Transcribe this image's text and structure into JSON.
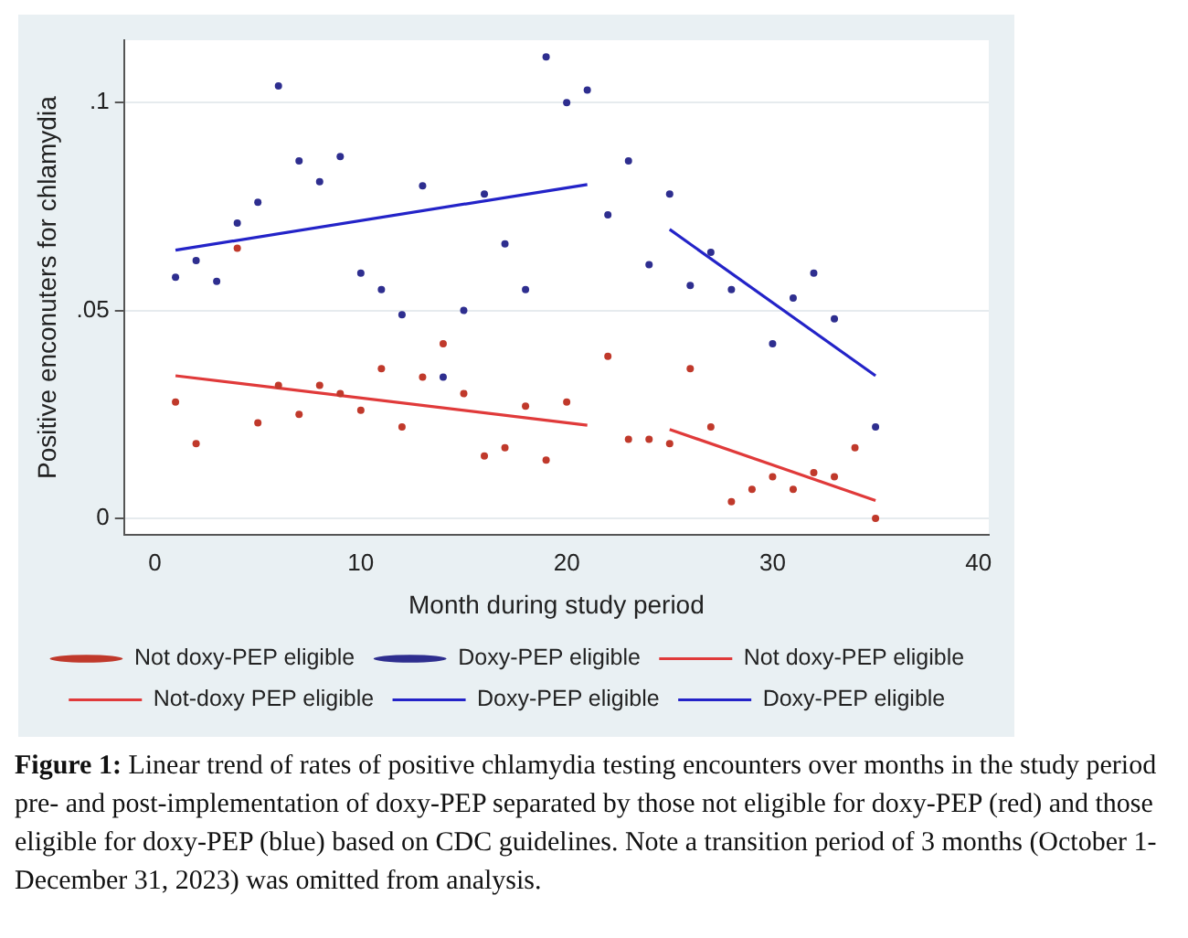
{
  "chart_data": {
    "type": "scatter",
    "xlabel": "Month during study period",
    "ylabel": "Positive enconuters for chlamydia",
    "xlim": [
      -1.5,
      40.5
    ],
    "xticks": [
      0,
      10,
      20,
      30,
      40
    ],
    "ylim": [
      -0.004,
      0.115
    ],
    "yticks": [
      0,
      {
        "value": 0.05,
        "label": ".05"
      },
      {
        "value": 0.1,
        "label": ".1"
      }
    ],
    "grid": "y",
    "legend": "bottom",
    "series": [
      {
        "name": "Not doxy-PEP eligible",
        "type": "scatter",
        "marker": "circle",
        "color": "#c0392b",
        "x": [
          1,
          2,
          4,
          5,
          6,
          7,
          8,
          9,
          10,
          11,
          12,
          13,
          14,
          15,
          16,
          17,
          18,
          19,
          20,
          22,
          23,
          24,
          25,
          26,
          27,
          28,
          29,
          30,
          31,
          32,
          33,
          34,
          35
        ],
        "values": [
          0.028,
          0.018,
          0.065,
          0.023,
          0.032,
          0.025,
          0.032,
          0.03,
          0.026,
          0.036,
          0.022,
          0.034,
          0.042,
          0.03,
          0.015,
          0.017,
          0.027,
          0.014,
          0.028,
          0.039,
          0.019,
          0.019,
          0.018,
          0.036,
          0.022,
          0.004,
          0.007,
          0.01,
          0.007,
          0.011,
          0.01,
          0.017,
          0
        ]
      },
      {
        "name": "Doxy-PEP eligible",
        "type": "scatter",
        "marker": "circle",
        "color": "#2e2e8f",
        "x": [
          1,
          2,
          3,
          4,
          5,
          6,
          7,
          8,
          9,
          10,
          11,
          12,
          13,
          14,
          15,
          16,
          17,
          18,
          19,
          20,
          21,
          22,
          23,
          24,
          25,
          26,
          27,
          28,
          30,
          31,
          32,
          33,
          35
        ],
        "values": [
          0.058,
          0.062,
          0.057,
          0.071,
          0.076,
          0.104,
          0.086,
          0.081,
          0.087,
          0.059,
          0.055,
          0.049,
          0.08,
          0.034,
          0.05,
          0.078,
          0.066,
          0.055,
          0.111,
          0.1,
          0.103,
          0.073,
          0.086,
          0.061,
          0.078,
          0.056,
          0.064,
          0.055,
          0.042,
          0.053,
          0.059,
          0.048,
          0.022
        ]
      },
      {
        "name": "Not doxy-PEP eligible",
        "type": "line",
        "color": "#e03a3a",
        "x": [
          1,
          21
        ],
        "values": [
          0.0343,
          0.0224
        ]
      },
      {
        "name": "Not-doxy PEP eligible",
        "type": "line",
        "color": "#e03a3a",
        "x": [
          25,
          35
        ],
        "values": [
          0.0214,
          0.0043
        ]
      },
      {
        "name": "Doxy-PEP eligible",
        "type": "line",
        "color": "#2323c8",
        "x": [
          1,
          21
        ],
        "values": [
          0.0645,
          0.0803
        ]
      },
      {
        "name": "Doxy-PEP eligible",
        "type": "line",
        "color": "#2323c8",
        "x": [
          25,
          35
        ],
        "values": [
          0.0695,
          0.0343
        ]
      }
    ],
    "annotations": [
      "Figure 1: Linear trend of rates of positive chlamydia testing encounters over months in the study period pre- and post-implementation of doxy-PEP separated by those not eligible for doxy-PEP (red) and those eligible for doxy-PEP (blue) based on CDC guidelines. Note a transition period of 3 months (October 1-December 31, 2023) was omitted from analysis."
    ]
  }
}
